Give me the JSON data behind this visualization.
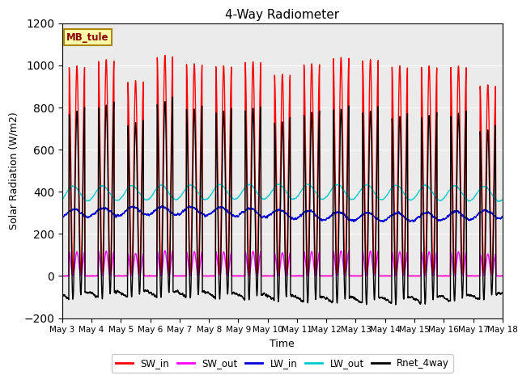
{
  "title": "4-Way Radiometer",
  "xlabel": "Time",
  "ylabel": "Solar Radiation (W/m2)",
  "ylim": [
    -200,
    1200
  ],
  "yticks": [
    -200,
    0,
    200,
    400,
    600,
    800,
    1000,
    1200
  ],
  "station_label": "MB_tule",
  "bg_color": "#ebebeb",
  "lines": {
    "SW_in": {
      "color": "#ff0000",
      "lw": 1.0
    },
    "SW_out": {
      "color": "#ff00ff",
      "lw": 1.0
    },
    "LW_in": {
      "color": "#0000dd",
      "lw": 1.0
    },
    "LW_out": {
      "color": "#00cccc",
      "lw": 1.0
    },
    "Rnet_4way": {
      "color": "#000000",
      "lw": 1.0
    }
  },
  "xtick_labels": [
    "May 3",
    "May 4",
    "May 5",
    "May 6",
    "May 7",
    "May 8",
    "May 9",
    "May 10",
    "May 11",
    "May 12",
    "May 13",
    "May 14",
    "May 15",
    "May 16",
    "May 17",
    "May 18"
  ],
  "legend_order": [
    "SW_in",
    "SW_out",
    "LW_in",
    "LW_out",
    "Rnet_4way"
  ],
  "n_days": 15,
  "pts_per_day": 288
}
